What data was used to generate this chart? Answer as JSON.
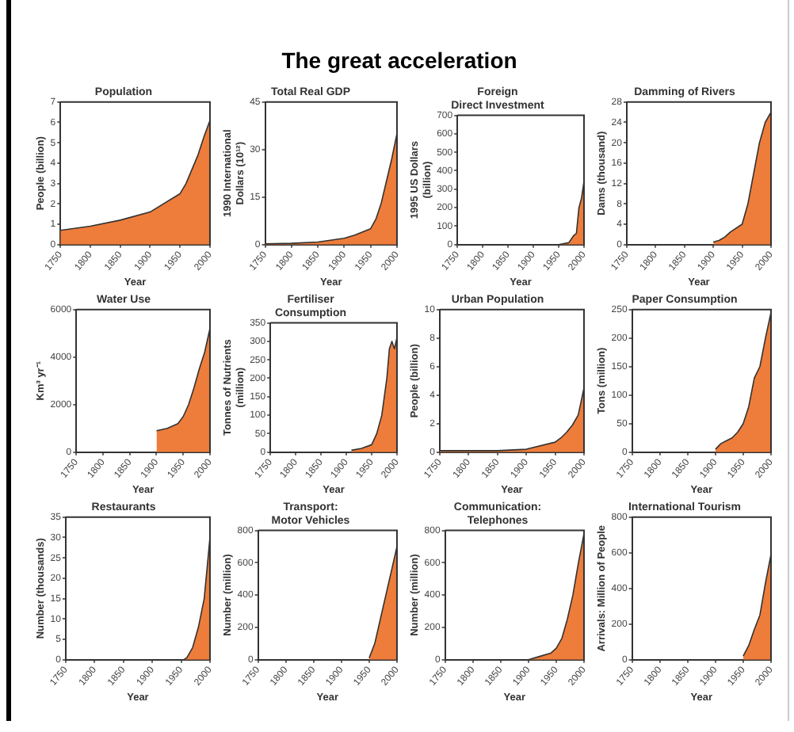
{
  "chart_data": [
    {
      "type": "other",
      "title": "The great acceleration"
    },
    {
      "type": "area",
      "title": "Population",
      "xlabel": "Year",
      "ylabel": "People (billion)",
      "color": "#ee7d3b",
      "xlim": [
        1750,
        2000
      ],
      "xticks": [
        1750,
        1800,
        1850,
        1900,
        1950,
        2000
      ],
      "ylim": [
        0,
        7
      ],
      "yticks": [
        0,
        1,
        2,
        3,
        4,
        5,
        6,
        7
      ],
      "x": [
        1750,
        1800,
        1850,
        1900,
        1950,
        1960,
        1970,
        1980,
        1990,
        2000
      ],
      "values": [
        0.7,
        0.9,
        1.2,
        1.6,
        2.5,
        3.0,
        3.7,
        4.4,
        5.3,
        6.1
      ]
    },
    {
      "type": "area",
      "title": "Total Real GDP",
      "xlabel": "Year",
      "ylabel": "1990 International\nDollars (10¹²)",
      "color": "#ee7d3b",
      "xlim": [
        1750,
        2000
      ],
      "xticks": [
        1750,
        1800,
        1850,
        1900,
        1950,
        2000
      ],
      "ylim": [
        0,
        45
      ],
      "yticks": [
        0,
        15,
        30,
        45
      ],
      "x": [
        1750,
        1800,
        1850,
        1900,
        1920,
        1950,
        1960,
        1970,
        1980,
        1990,
        2000
      ],
      "values": [
        0.2,
        0.4,
        0.8,
        2,
        3,
        5,
        8,
        13,
        20,
        27,
        35
      ]
    },
    {
      "type": "area",
      "title": "Foreign\nDirect Investment",
      "xlabel": "Year",
      "ylabel": "1995 US Dollars\n(billion)",
      "color": "#ee7d3b",
      "xlim": [
        1750,
        2000
      ],
      "xticks": [
        1750,
        1800,
        1850,
        1900,
        1950,
        2000
      ],
      "ylim": [
        0,
        700
      ],
      "yticks": [
        0,
        100,
        200,
        300,
        400,
        500,
        600,
        700
      ],
      "x": [
        1950,
        1970,
        1975,
        1980,
        1985,
        1990,
        1995,
        2000
      ],
      "values": [
        0,
        10,
        30,
        50,
        60,
        200,
        250,
        340
      ]
    },
    {
      "type": "area",
      "title": "Damming of Rivers",
      "xlabel": "Year",
      "ylabel": "Dams (thousand)",
      "color": "#ee7d3b",
      "xlim": [
        1750,
        2000
      ],
      "xticks": [
        1750,
        1800,
        1850,
        1900,
        1950,
        2000
      ],
      "ylim": [
        0,
        28
      ],
      "yticks": [
        0,
        4,
        8,
        12,
        16,
        20,
        24,
        28
      ],
      "x": [
        1900,
        1910,
        1920,
        1930,
        1950,
        1960,
        1970,
        1980,
        1990,
        2000
      ],
      "values": [
        0.5,
        0.8,
        1.5,
        2.5,
        4,
        8,
        14,
        20,
        24,
        26
      ]
    },
    {
      "type": "area",
      "title": "Water Use",
      "xlabel": "Year",
      "ylabel": "Km³ yr⁻¹",
      "color": "#ee7d3b",
      "xlim": [
        1750,
        2000
      ],
      "xticks": [
        1750,
        1800,
        1850,
        1900,
        1950,
        2000
      ],
      "ylim": [
        0,
        6000
      ],
      "yticks": [
        0,
        2000,
        4000,
        6000
      ],
      "x": [
        1900,
        1920,
        1940,
        1950,
        1960,
        1970,
        1980,
        1990,
        2000
      ],
      "values": [
        900,
        1000,
        1200,
        1500,
        2000,
        2700,
        3500,
        4200,
        5200
      ]
    },
    {
      "type": "area",
      "title": "Fertiliser\nConsumption",
      "xlabel": "Year",
      "ylabel": "Tonnes of Nutrients\n(million)",
      "color": "#ee7d3b",
      "xlim": [
        1750,
        2000
      ],
      "xticks": [
        1750,
        1800,
        1850,
        1900,
        1950,
        2000
      ],
      "ylim": [
        0,
        350
      ],
      "yticks": [
        0,
        50,
        100,
        150,
        200,
        250,
        300,
        350
      ],
      "x": [
        1910,
        1930,
        1950,
        1960,
        1970,
        1980,
        1985,
        1990,
        1995,
        2000
      ],
      "values": [
        5,
        10,
        20,
        50,
        100,
        200,
        280,
        300,
        280,
        310
      ]
    },
    {
      "type": "area",
      "title": "Urban Population",
      "xlabel": "Year",
      "ylabel": "People (billion)",
      "color": "#ee7d3b",
      "xlim": [
        1750,
        2000
      ],
      "xticks": [
        1750,
        1800,
        1850,
        1900,
        1950,
        2000
      ],
      "ylim": [
        0,
        10
      ],
      "yticks": [
        0,
        2,
        4,
        6,
        8,
        10
      ],
      "x": [
        1750,
        1800,
        1850,
        1900,
        1950,
        1960,
        1970,
        1980,
        1990,
        2000
      ],
      "values": [
        0.1,
        0.1,
        0.1,
        0.2,
        0.7,
        1.0,
        1.4,
        1.9,
        2.6,
        4.5
      ]
    },
    {
      "type": "area",
      "title": "Paper Consumption",
      "xlabel": "Year",
      "ylabel": "Tons (million)",
      "color": "#ee7d3b",
      "xlim": [
        1750,
        2000
      ],
      "xticks": [
        1750,
        1800,
        1850,
        1900,
        1950,
        2000
      ],
      "ylim": [
        0,
        250
      ],
      "yticks": [
        0,
        50,
        100,
        150,
        200,
        250
      ],
      "x": [
        1900,
        1910,
        1920,
        1930,
        1940,
        1950,
        1960,
        1970,
        1980,
        1990,
        2000
      ],
      "values": [
        5,
        15,
        20,
        25,
        35,
        50,
        80,
        130,
        150,
        200,
        245
      ]
    },
    {
      "type": "area",
      "title": "Restaurants",
      "xlabel": "Year",
      "ylabel": "Number (thousands)",
      "color": "#ee7d3b",
      "xlim": [
        1750,
        2000
      ],
      "xticks": [
        1750,
        1800,
        1850,
        1900,
        1950,
        2000
      ],
      "ylim": [
        0,
        35
      ],
      "yticks": [
        0,
        5,
        10,
        15,
        20,
        25,
        30,
        35
      ],
      "x": [
        1955,
        1960,
        1970,
        1980,
        1990,
        2000
      ],
      "values": [
        0,
        0.5,
        3,
        8,
        15,
        30
      ]
    },
    {
      "type": "area",
      "title": "Transport:\nMotor Vehicles",
      "xlabel": "Year",
      "ylabel": "Number (million)",
      "color": "#ee7d3b",
      "xlim": [
        1750,
        2000
      ],
      "xticks": [
        1750,
        1800,
        1850,
        1900,
        1950,
        2000
      ],
      "ylim": [
        0,
        800
      ],
      "yticks": [
        0,
        200,
        400,
        600,
        800
      ],
      "x": [
        1950,
        1960,
        1970,
        1980,
        1990,
        2000
      ],
      "values": [
        10,
        100,
        250,
        400,
        550,
        700
      ]
    },
    {
      "type": "area",
      "title": "Communication:\nTelephones",
      "xlabel": "Year",
      "ylabel": "Number (million)",
      "color": "#ee7d3b",
      "xlim": [
        1750,
        2000
      ],
      "xticks": [
        1750,
        1800,
        1850,
        1900,
        1950,
        2000
      ],
      "ylim": [
        0,
        800
      ],
      "yticks": [
        0,
        200,
        400,
        600,
        800
      ],
      "x": [
        1900,
        1920,
        1940,
        1950,
        1960,
        1970,
        1980,
        1990,
        2000
      ],
      "values": [
        0,
        20,
        40,
        70,
        130,
        250,
        400,
        600,
        780
      ]
    },
    {
      "type": "area",
      "title": "International Tourism",
      "xlabel": "Year",
      "ylabel": "Arrivals: Million of People",
      "color": "#ee7d3b",
      "xlim": [
        1750,
        2000
      ],
      "xticks": [
        1750,
        1800,
        1850,
        1900,
        1950,
        2000
      ],
      "ylim": [
        0,
        800
      ],
      "yticks": [
        0,
        200,
        400,
        600,
        800
      ],
      "x": [
        1950,
        1960,
        1970,
        1980,
        1990,
        2000
      ],
      "values": [
        20,
        80,
        170,
        250,
        430,
        590
      ]
    }
  ]
}
